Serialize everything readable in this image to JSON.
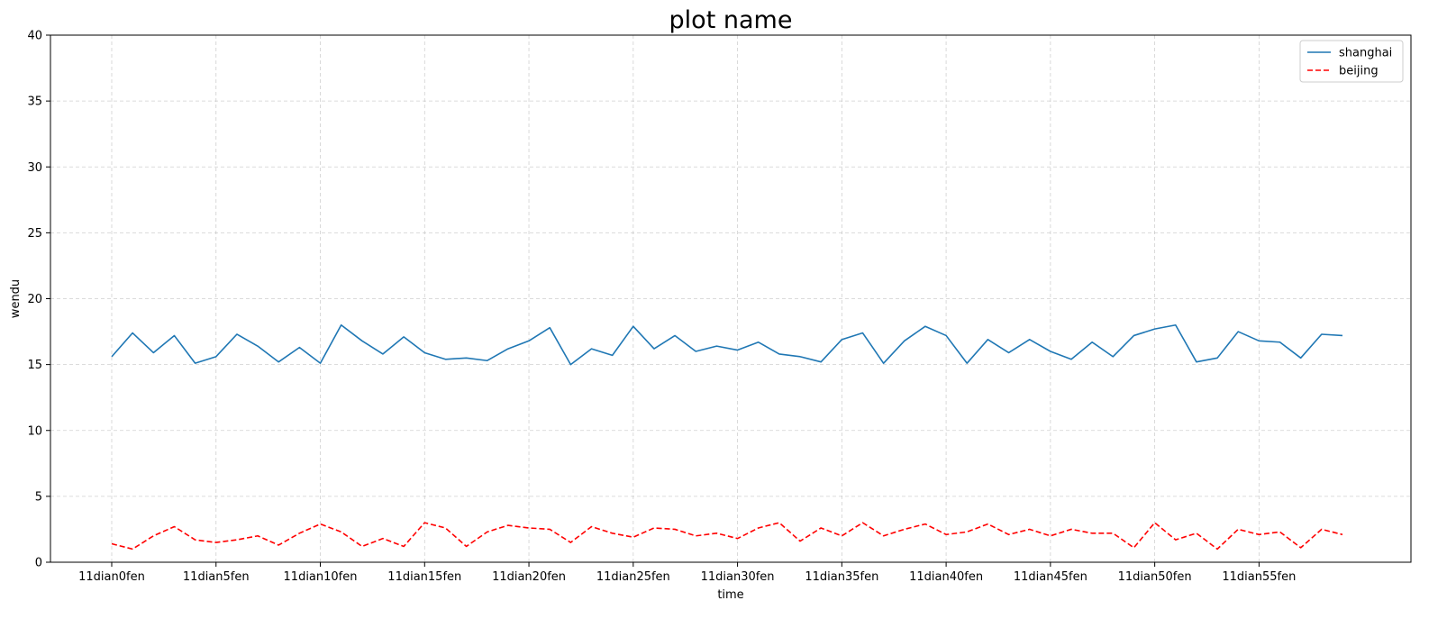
{
  "chart_data": {
    "type": "line",
    "title": "plot name",
    "xlabel": "time",
    "ylabel": "wendu",
    "ylim": [
      0,
      40
    ],
    "yticks": [
      0,
      5,
      10,
      15,
      20,
      25,
      30,
      35,
      40
    ],
    "grid": true,
    "legend_position": "top-right",
    "x": [
      "11dian0fen",
      "11dian1fen",
      "11dian2fen",
      "11dian3fen",
      "11dian4fen",
      "11dian5fen",
      "11dian6fen",
      "11dian7fen",
      "11dian8fen",
      "11dian9fen",
      "11dian10fen",
      "11dian11fen",
      "11dian12fen",
      "11dian13fen",
      "11dian14fen",
      "11dian15fen",
      "11dian16fen",
      "11dian17fen",
      "11dian18fen",
      "11dian19fen",
      "11dian20fen",
      "11dian21fen",
      "11dian22fen",
      "11dian23fen",
      "11dian24fen",
      "11dian25fen",
      "11dian26fen",
      "11dian27fen",
      "11dian28fen",
      "11dian29fen",
      "11dian30fen",
      "11dian31fen",
      "11dian32fen",
      "11dian33fen",
      "11dian34fen",
      "11dian35fen",
      "11dian36fen",
      "11dian37fen",
      "11dian38fen",
      "11dian39fen",
      "11dian40fen",
      "11dian41fen",
      "11dian42fen",
      "11dian43fen",
      "11dian44fen",
      "11dian45fen",
      "11dian46fen",
      "11dian47fen",
      "11dian48fen",
      "11dian49fen",
      "11dian50fen",
      "11dian51fen",
      "11dian52fen",
      "11dian53fen",
      "11dian54fen",
      "11dian55fen",
      "11dian56fen",
      "11dian57fen",
      "11dian58fen",
      "11dian59fen"
    ],
    "xticks_shown": [
      "11dian0fen",
      "11dian5fen",
      "11dian10fen",
      "11dian15fen",
      "11dian20fen",
      "11dian25fen",
      "11dian30fen",
      "11dian35fen",
      "11dian40fen",
      "11dian45fen",
      "11dian50fen",
      "11dian55fen"
    ],
    "series": [
      {
        "name": "shanghai",
        "color": "#1f77b4",
        "style": "solid",
        "values": [
          15.6,
          17.4,
          15.9,
          17.2,
          15.1,
          15.6,
          17.3,
          16.4,
          15.2,
          16.3,
          15.1,
          18.0,
          16.8,
          15.8,
          17.1,
          15.9,
          15.4,
          15.5,
          15.3,
          16.2,
          16.8,
          17.8,
          15.0,
          16.2,
          15.7,
          17.9,
          16.2,
          17.2,
          16.0,
          16.4,
          16.1,
          16.7,
          15.8,
          15.6,
          15.2,
          16.9,
          17.4,
          15.1,
          16.8,
          17.9,
          17.2,
          15.1,
          16.9,
          15.9,
          16.9,
          16.0,
          15.4,
          16.7,
          15.6,
          17.2,
          17.7,
          18.0,
          15.2,
          15.5,
          17.5,
          16.8,
          16.7,
          15.5,
          17.3,
          17.2
        ]
      },
      {
        "name": "beijing",
        "color": "#ff0000",
        "style": "dashed",
        "values": [
          1.4,
          1.0,
          2.0,
          2.7,
          1.7,
          1.5,
          1.7,
          2.0,
          1.3,
          2.2,
          2.9,
          2.3,
          1.2,
          1.8,
          1.2,
          3.0,
          2.6,
          1.2,
          2.3,
          2.8,
          2.6,
          2.5,
          1.5,
          2.7,
          2.2,
          1.9,
          2.6,
          2.5,
          2.0,
          2.2,
          1.8,
          2.6,
          3.0,
          1.6,
          2.6,
          2.0,
          3.0,
          2.0,
          2.5,
          2.9,
          2.1,
          2.3,
          2.9,
          2.1,
          2.5,
          2.0,
          2.5,
          2.2,
          2.2,
          1.1,
          3.0,
          1.7,
          2.2,
          1.0,
          2.5,
          2.1,
          2.3,
          1.1,
          2.5,
          2.1
        ]
      }
    ]
  }
}
